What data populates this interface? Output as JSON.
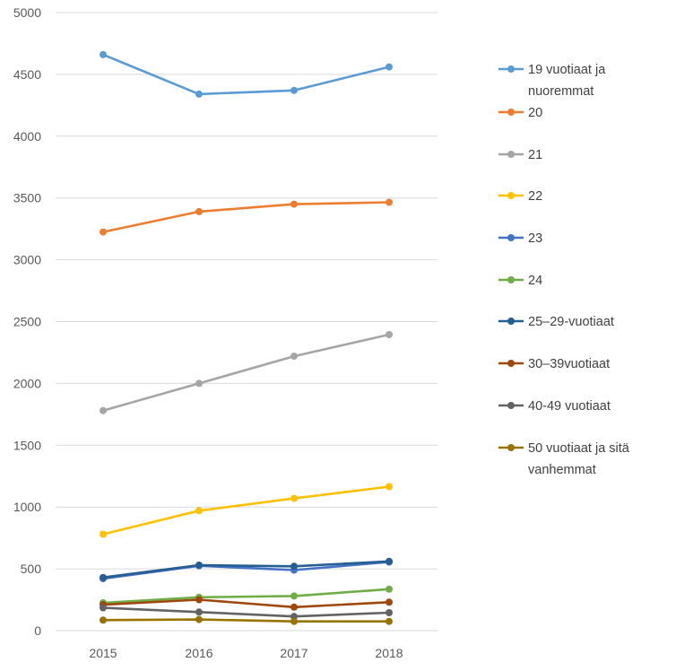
{
  "chart_data": {
    "type": "line",
    "x": [
      "2015",
      "2016",
      "2017",
      "2018"
    ],
    "yticks": [
      "0",
      "500",
      "1000",
      "1500",
      "2000",
      "2500",
      "3000",
      "3500",
      "4000",
      "4500",
      "5000"
    ],
    "ylim": [
      0,
      5000
    ],
    "grid": true,
    "legend_position": "right",
    "series": [
      {
        "name": "19 vuotiaat ja nuoremmat",
        "color": "#5B9BD5",
        "values": [
          4660,
          4340,
          4370,
          4560
        ]
      },
      {
        "name": "20",
        "color": "#ED7D31",
        "values": [
          3225,
          3390,
          3450,
          3465
        ]
      },
      {
        "name": "21",
        "color": "#A5A5A5",
        "values": [
          1780,
          2000,
          2220,
          2395
        ]
      },
      {
        "name": "22",
        "color": "#FFC000",
        "values": [
          780,
          970,
          1070,
          1165
        ]
      },
      {
        "name": "23",
        "color": "#4472C4",
        "values": [
          420,
          525,
          490,
          555
        ]
      },
      {
        "name": "24",
        "color": "#70AD47",
        "values": [
          225,
          270,
          280,
          335
        ]
      },
      {
        "name": "25–29-vuotiaat",
        "color": "#255E91",
        "values": [
          430,
          530,
          520,
          560
        ]
      },
      {
        "name": "30–39vuotiaat",
        "color": "#9E480E",
        "values": [
          210,
          250,
          190,
          230
        ]
      },
      {
        "name": "40-49 vuotiaat",
        "color": "#636363",
        "values": [
          185,
          150,
          115,
          145
        ]
      },
      {
        "name": "50 vuotiaat ja sitä vanhemmat",
        "color": "#997300",
        "values": [
          85,
          90,
          75,
          75
        ]
      }
    ]
  }
}
